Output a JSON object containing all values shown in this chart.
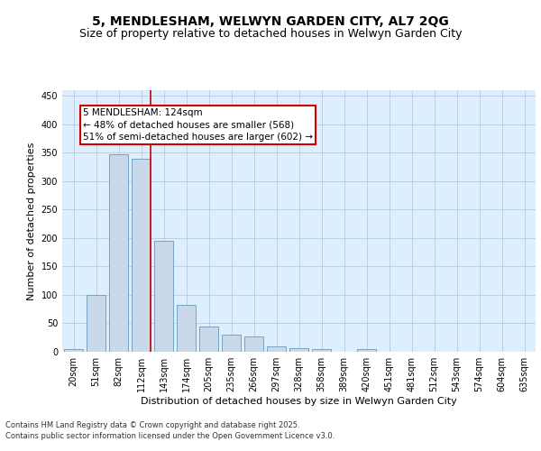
{
  "title_line1": "5, MENDLESHAM, WELWYN GARDEN CITY, AL7 2QG",
  "title_line2": "Size of property relative to detached houses in Welwyn Garden City",
  "xlabel": "Distribution of detached houses by size in Welwyn Garden City",
  "ylabel": "Number of detached properties",
  "categories": [
    "20sqm",
    "51sqm",
    "82sqm",
    "112sqm",
    "143sqm",
    "174sqm",
    "205sqm",
    "235sqm",
    "266sqm",
    "297sqm",
    "328sqm",
    "358sqm",
    "389sqm",
    "420sqm",
    "451sqm",
    "481sqm",
    "512sqm",
    "543sqm",
    "574sqm",
    "604sqm",
    "635sqm"
  ],
  "values": [
    5,
    100,
    348,
    340,
    195,
    83,
    45,
    30,
    27,
    10,
    6,
    4,
    0,
    5,
    0,
    0,
    0,
    0,
    0,
    0,
    0
  ],
  "bar_color": "#c9d9ea",
  "bar_edge_color": "#6699bb",
  "vline_x": 3.42,
  "vline_color": "#cc0000",
  "annotation_text": "5 MENDLESHAM: 124sqm\n← 48% of detached houses are smaller (568)\n51% of semi-detached houses are larger (602) →",
  "annotation_box_color": "#ffffff",
  "annotation_box_edge": "#cc0000",
  "ylim": [
    0,
    460
  ],
  "yticks": [
    0,
    50,
    100,
    150,
    200,
    250,
    300,
    350,
    400,
    450
  ],
  "grid_color": "#b0c4d8",
  "plot_bg_color": "#ddeeff",
  "footer_text": "Contains HM Land Registry data © Crown copyright and database right 2025.\nContains public sector information licensed under the Open Government Licence v3.0.",
  "title_fontsize": 10,
  "subtitle_fontsize": 9,
  "axis_label_fontsize": 8,
  "tick_fontsize": 7,
  "annotation_fontsize": 7.5
}
